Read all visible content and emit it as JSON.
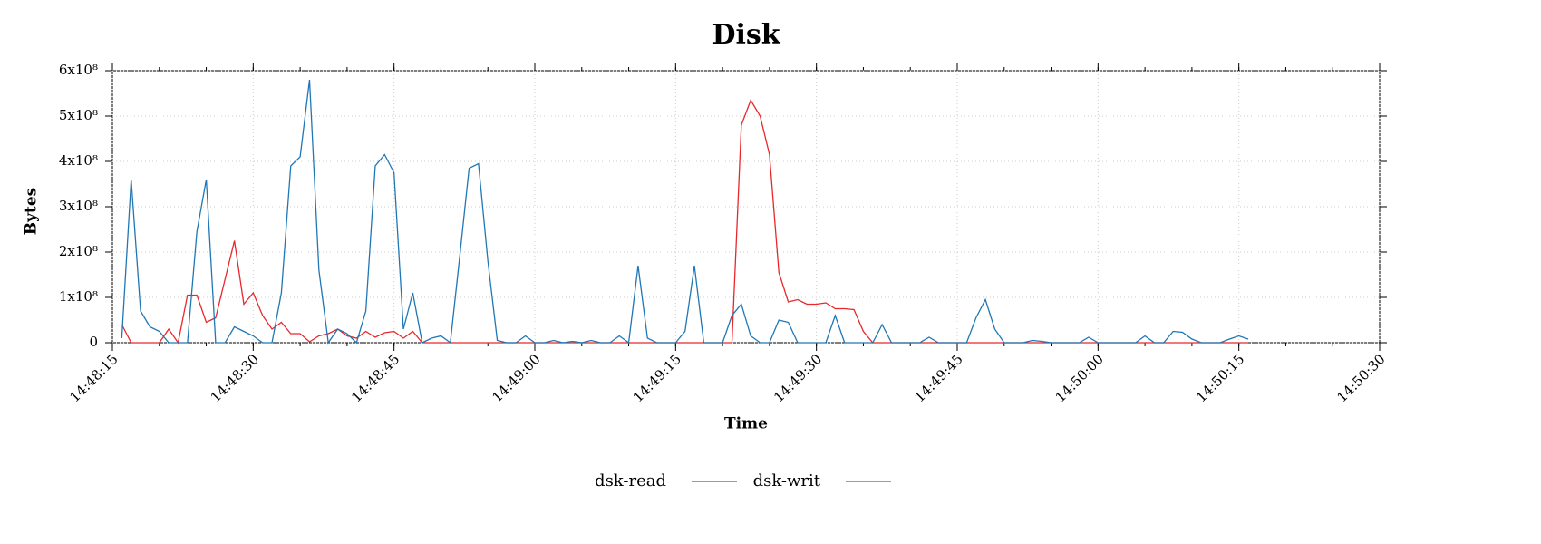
{
  "chart_data": {
    "type": "line",
    "title": "Disk",
    "xlabel": "Time",
    "ylabel": "Bytes",
    "x": [
      "14:48:16",
      "14:48:17",
      "14:48:18",
      "14:48:19",
      "14:48:20",
      "14:48:21",
      "14:48:22",
      "14:48:23",
      "14:48:24",
      "14:48:25",
      "14:48:26",
      "14:48:27",
      "14:48:28",
      "14:48:29",
      "14:48:30",
      "14:48:31",
      "14:48:32",
      "14:48:33",
      "14:48:34",
      "14:48:35",
      "14:48:36",
      "14:48:37",
      "14:48:38",
      "14:48:39",
      "14:48:40",
      "14:48:41",
      "14:48:42",
      "14:48:43",
      "14:48:44",
      "14:48:45",
      "14:48:46",
      "14:48:47",
      "14:48:48",
      "14:48:49",
      "14:48:50",
      "14:48:51",
      "14:48:52",
      "14:48:53",
      "14:48:54",
      "14:48:55",
      "14:48:56",
      "14:48:57",
      "14:48:58",
      "14:48:59",
      "14:49:00",
      "14:49:01",
      "14:49:02",
      "14:49:03",
      "14:49:04",
      "14:49:05",
      "14:49:06",
      "14:49:07",
      "14:49:08",
      "14:49:09",
      "14:49:10",
      "14:49:11",
      "14:49:12",
      "14:49:13",
      "14:49:14",
      "14:49:15",
      "14:49:16",
      "14:49:17",
      "14:49:18",
      "14:49:19",
      "14:49:20",
      "14:49:21",
      "14:49:22",
      "14:49:23",
      "14:49:24",
      "14:49:25",
      "14:49:26",
      "14:49:27",
      "14:49:28",
      "14:49:29",
      "14:49:30",
      "14:49:31",
      "14:49:32",
      "14:49:33",
      "14:49:34",
      "14:49:35",
      "14:49:36",
      "14:49:37",
      "14:49:38",
      "14:49:39",
      "14:49:40",
      "14:49:41",
      "14:49:42",
      "14:49:43",
      "14:49:44",
      "14:49:45",
      "14:49:46",
      "14:49:47",
      "14:49:48",
      "14:49:49",
      "14:49:50",
      "14:49:51",
      "14:49:52",
      "14:49:53",
      "14:49:54",
      "14:49:55",
      "14:49:56",
      "14:49:57",
      "14:49:58",
      "14:49:59",
      "14:50:00",
      "14:50:01",
      "14:50:02",
      "14:50:03",
      "14:50:04",
      "14:50:05",
      "14:50:06",
      "14:50:07",
      "14:50:08",
      "14:50:09",
      "14:50:10",
      "14:50:11",
      "14:50:12",
      "14:50:13",
      "14:50:14",
      "14:50:15",
      "14:50:16"
    ],
    "series": [
      {
        "name": "dsk-read",
        "color": "#e8272a",
        "values": [
          40000000.0,
          0,
          0,
          0,
          0,
          30000000.0,
          0,
          105000000.0,
          105000000.0,
          45000000.0,
          55000000.0,
          140000000.0,
          225000000.0,
          85000000.0,
          110000000.0,
          60000000.0,
          30000000.0,
          45000000.0,
          20000000.0,
          20000000.0,
          2000000.0,
          15000000.0,
          20000000.0,
          30000000.0,
          15000000.0,
          10000000.0,
          25000000.0,
          12000000.0,
          22000000.0,
          25000000.0,
          10000000.0,
          25000000.0,
          0,
          0,
          0,
          0,
          0,
          0,
          0,
          0,
          0,
          0,
          0,
          0,
          0,
          0,
          0,
          0,
          0,
          0,
          0,
          0,
          0,
          0,
          0,
          0,
          0,
          0,
          0,
          0,
          0,
          0,
          0,
          0,
          0,
          0,
          480000000.0,
          535000000.0,
          500000000.0,
          415000000.0,
          155000000.0,
          90000000.0,
          95000000.0,
          85000000.0,
          85000000.0,
          88000000.0,
          75000000.0,
          75000000.0,
          73000000.0,
          25000000.0,
          0,
          0,
          0,
          0,
          0,
          0,
          0,
          0,
          0,
          0,
          0,
          0,
          0,
          0,
          0,
          0,
          0,
          0,
          0,
          0,
          0,
          0,
          0,
          0,
          0,
          0,
          0,
          0,
          0,
          0,
          0,
          0,
          0,
          0,
          0,
          0,
          0,
          0,
          0,
          0,
          0
        ]
      },
      {
        "name": "dsk-writ",
        "color": "#1f77b4",
        "values": [
          10000000.0,
          360000000.0,
          70000000.0,
          35000000.0,
          25000000.0,
          0,
          0,
          0,
          245000000.0,
          360000000.0,
          0,
          0,
          35000000.0,
          25000000.0,
          15000000.0,
          0,
          0,
          110000000.0,
          390000000.0,
          410000000.0,
          580000000.0,
          160000000.0,
          0,
          30000000.0,
          20000000.0,
          0,
          70000000.0,
          390000000.0,
          415000000.0,
          375000000.0,
          30000000.0,
          110000000.0,
          0,
          10000000.0,
          15000000.0,
          0,
          190000000.0,
          385000000.0,
          395000000.0,
          180000000.0,
          5000000.0,
          0,
          0,
          15000000.0,
          0,
          0,
          5000000.0,
          0,
          3000000.0,
          0,
          5000000.0,
          0,
          0,
          15000000.0,
          0,
          170000000.0,
          10000000.0,
          0,
          0,
          0,
          25000000.0,
          170000000.0,
          0,
          0,
          0,
          60000000.0,
          85000000.0,
          15000000.0,
          0,
          0,
          50000000.0,
          45000000.0,
          0,
          0,
          0,
          0,
          60000000.0,
          0,
          0,
          0,
          0,
          40000000.0,
          0,
          0,
          0,
          0,
          12000000.0,
          0,
          0,
          0,
          0,
          55000000.0,
          95000000.0,
          30000000.0,
          0,
          0,
          0,
          5000000.0,
          3000000.0,
          0,
          0,
          0,
          0,
          12000000.0,
          0,
          0,
          0,
          0,
          0,
          15000000.0,
          0,
          0,
          25000000.0,
          23000000.0,
          8000000.0,
          0,
          0,
          0,
          8000000.0,
          15000000.0,
          8000000.0
        ]
      }
    ],
    "xlim": [
      "14:48:15",
      "14:50:30"
    ],
    "xticks": [
      "14:48:15",
      "14:48:30",
      "14:48:45",
      "14:49:00",
      "14:49:15",
      "14:49:30",
      "14:49:45",
      "14:50:00",
      "14:50:15",
      "14:50:30"
    ],
    "ylim": [
      0,
      600000000.0
    ],
    "yticks": [
      0,
      {
        "value": 100000000.0,
        "label": "1x10⁸"
      },
      {
        "value": 200000000.0,
        "label": "2x10⁸"
      },
      {
        "value": 300000000.0,
        "label": "3x10⁸"
      },
      {
        "value": 400000000.0,
        "label": "4x10⁸"
      },
      {
        "value": 500000000.0,
        "label": "5x10⁸"
      },
      {
        "value": 600000000.0,
        "label": "6x10⁸"
      }
    ],
    "grid": true,
    "legend": "bottom"
  }
}
